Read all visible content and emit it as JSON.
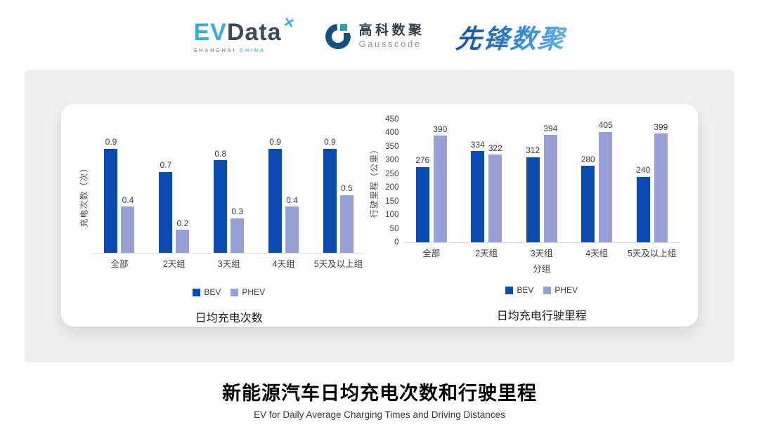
{
  "header": {
    "evdata": {
      "ev": "EV",
      "data": "Data",
      "x_glyph": "✕",
      "sub_left": "SHANGHAI",
      "sub_right": "CHINA"
    },
    "gausscode": {
      "cn": "高科数聚",
      "en": "Gausscode"
    },
    "xianfeng": {
      "text": "先锋数聚"
    }
  },
  "footer": {
    "title": "新能源汽车日均充电次数和行驶里程",
    "subtitle": "EV for Daily Average Charging Times and Driving Distances"
  },
  "chart_data": [
    {
      "type": "bar",
      "title": "日均充电次数",
      "xlabel": "",
      "ylabel": "充电次数（次）",
      "categories": [
        "全部",
        "2天组",
        "3天组",
        "4天组",
        "5天及以上组"
      ],
      "series": [
        {
          "name": "BEV",
          "color": "#0b4ab0",
          "values": [
            0.9,
            0.7,
            0.8,
            0.9,
            0.9
          ]
        },
        {
          "name": "PHEV",
          "color": "#97a1d5",
          "values": [
            0.4,
            0.2,
            0.3,
            0.4,
            0.5
          ]
        }
      ],
      "ylim": [
        0,
        1.0
      ],
      "yticks": [],
      "grid": false,
      "value_labels": true,
      "legend_position": "bottom"
    },
    {
      "type": "bar",
      "title": "日均充电行驶里程",
      "xlabel": "分组",
      "ylabel": "行驶里程（公里）",
      "categories": [
        "全部",
        "2天组",
        "3天组",
        "4天组",
        "5天及以上组"
      ],
      "series": [
        {
          "name": "BEV",
          "color": "#0b4ab0",
          "values": [
            276,
            334,
            312,
            280,
            240
          ]
        },
        {
          "name": "PHEV",
          "color": "#97a1d5",
          "values": [
            390,
            322,
            394,
            405,
            399
          ]
        }
      ],
      "ylim": [
        0,
        450
      ],
      "yticks": [
        0,
        50,
        100,
        150,
        200,
        250,
        300,
        350,
        400,
        450
      ],
      "grid": false,
      "value_labels": true,
      "legend_position": "bottom"
    }
  ]
}
